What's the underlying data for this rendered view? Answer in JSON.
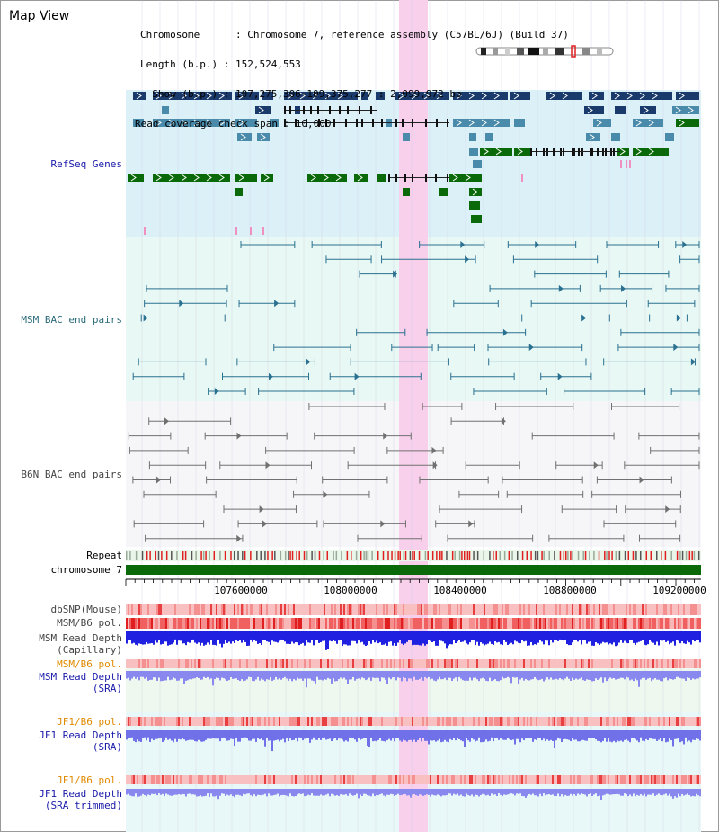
{
  "panel_title": "Map View",
  "header": {
    "chromosome_line": "Chromosome      : Chromosome 7, reference assembly (C57BL/6J) (Build 37)",
    "length_line": "Length (b.p.) : 152,524,553",
    "show_line": "  Show (b.p.) : 107,275,306-109,375,277 : 2,099,972 bp",
    "span_line": "Read coverage check span : 10,000"
  },
  "tracks": {
    "refseq": "RefSeq Genes",
    "msm_bac": "MSM BAC end pairs",
    "b6n_bac": "B6N BAC end pairs",
    "repeat": "Repeat",
    "chromosome": "chromosome 7",
    "dbsnp": "dbSNP(Mouse)",
    "msm_b6_pol_1": "MSM/B6 pol.",
    "msm_depth_cap_1": "MSM Read Depth",
    "msm_depth_cap_2": "(Capillary)",
    "msm_b6_pol_2": "MSM/B6 pol.",
    "msm_depth_sra_1": "MSM Read Depth",
    "msm_depth_sra_2": "(SRA)",
    "jf1_pol_1": "JF1/B6 pol.",
    "jf1_depth_sra_1": "JF1 Read Depth",
    "jf1_depth_sra_2": "(SRA)",
    "jf1_pol_2": "JF1/B6 pol.",
    "jf1_depth_trim_1": "JF1 Read Depth",
    "jf1_depth_trim_2": "(SRA trimmed)"
  },
  "axis_ticks": [
    "107600000",
    "108000000",
    "108400000",
    "108800000",
    "109200000"
  ],
  "colors": {
    "refseq_bg": "#dcf0f8",
    "bac_bg": "#e8f8f4",
    "gray_bg": "#f6f6f8",
    "highlight": "#f8d0ec",
    "gene_navy": "#1a3a6c",
    "gene_teal": "#4a8aaa",
    "gene_green": "#0a6a0a",
    "msm_line": "#2a7090",
    "b6n_line": "#707070",
    "chromosome_bar": "#0a6a0a",
    "label_blue": "#1a1aaa",
    "label_teal": "#2a6a7a",
    "label_orange": "#e08a00",
    "label_gray": "#444444"
  }
}
